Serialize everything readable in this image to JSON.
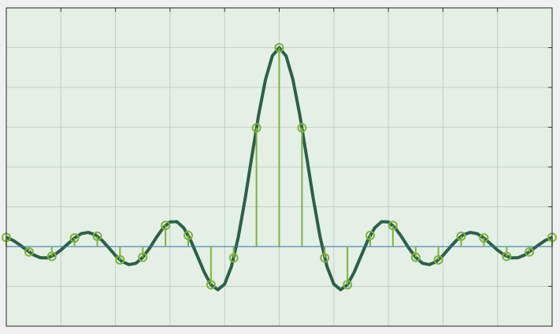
{
  "chart_data": [
    {
      "type": "line",
      "color": "#2a6147",
      "x": [
        -20,
        -19.5,
        -19,
        -18.5,
        -18,
        -17.5,
        -17,
        -16.5,
        -16,
        -15.5,
        -15,
        -14.5,
        -14,
        -13.5,
        -13,
        -12.5,
        -12,
        -11.5,
        -11,
        -10.5,
        -10,
        -9.5,
        -9,
        -8.5,
        -8,
        -7.5,
        -7,
        -6.5,
        -6,
        -5.5,
        -5,
        -4.5,
        -4,
        -3.5,
        -3,
        -2.5,
        -2,
        -1.5,
        -1,
        -0.5,
        0,
        0.5,
        1,
        1.5,
        2,
        2.5,
        3,
        3.5,
        4,
        4.5,
        5,
        5.5,
        6,
        6.5,
        7,
        7.5,
        8,
        8.5,
        9,
        9.5,
        10,
        10.5,
        11,
        11.5,
        12,
        12.5,
        13,
        13.5,
        14,
        14.5,
        15,
        15.5,
        16,
        16.5,
        17,
        17.5,
        18,
        18.5,
        19,
        19.5,
        20
      ],
      "values": [
        0.046,
        0.031,
        0.008,
        -0.018,
        -0.042,
        -0.056,
        -0.057,
        -0.043,
        -0.018,
        0.013,
        0.043,
        0.065,
        0.071,
        0.06,
        0.032,
        -0.005,
        -0.045,
        -0.076,
        -0.091,
        -0.084,
        -0.054,
        -0.008,
        0.046,
        0.094,
        0.124,
        0.125,
        0.094,
        0.033,
        -0.047,
        -0.128,
        -0.192,
        -0.217,
        -0.189,
        -0.1,
        0.047,
        0.239,
        0.455,
        0.665,
        0.841,
        0.959,
        1,
        0.959,
        0.841,
        0.665,
        0.455,
        0.239,
        0.047,
        -0.1,
        -0.189,
        -0.217,
        -0.192,
        -0.128,
        -0.047,
        0.033,
        0.094,
        0.125,
        0.124,
        0.094,
        0.046,
        -0.008,
        -0.054,
        -0.084,
        -0.091,
        -0.076,
        -0.045,
        -0.005,
        0.032,
        0.06,
        0.071,
        0.065,
        0.043,
        0.013,
        -0.018,
        -0.043,
        -0.057,
        -0.056,
        -0.042,
        -0.018,
        0.008,
        0.031,
        0.046
      ],
      "xlim": [
        -20,
        20
      ],
      "ylim": [
        -0.4,
        1.2
      ],
      "xticks": [
        -20,
        -16,
        -12,
        -8,
        -4,
        0,
        4,
        8,
        12,
        16,
        20
      ],
      "yticks": [
        -0.4,
        -0.2,
        0,
        0.2,
        0.4,
        0.6,
        0.8,
        1,
        1.2
      ],
      "grid": true
    },
    {
      "type": "stem",
      "color": "#7db33a",
      "baseline_color": "#2e6fa8",
      "x": [
        -20,
        -18.333,
        -16.667,
        -15,
        -13.333,
        -11.667,
        -10,
        -8.333,
        -6.667,
        -5,
        -3.333,
        -1.667,
        0,
        1.667,
        3.333,
        5,
        6.667,
        8.333,
        10,
        11.667,
        13.333,
        15,
        16.667,
        18.333,
        20
      ],
      "values": [
        0.046,
        -0.027,
        -0.049,
        0.043,
        0.052,
        -0.067,
        -0.054,
        0.106,
        0.056,
        -0.192,
        -0.057,
        0.597,
        1,
        0.597,
        -0.057,
        -0.192,
        0.056,
        0.106,
        -0.054,
        -0.067,
        0.052,
        0.043,
        -0.049,
        -0.027,
        0.046
      ]
    }
  ]
}
